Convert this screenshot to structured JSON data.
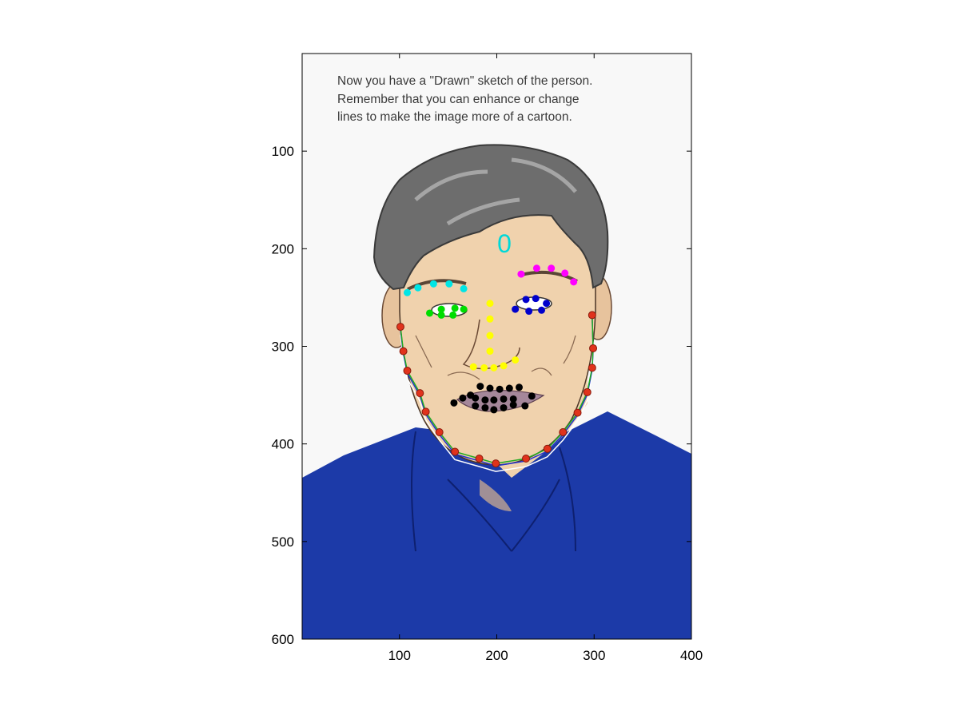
{
  "caption": {
    "lines": [
      "Now you have a \"Drawn\" sketch of the person.",
      "Remember that you can enhance or change",
      "lines to make the image more of a cartoon."
    ]
  },
  "index_marker": "0",
  "axes": {
    "xlim": [
      0,
      400
    ],
    "ylim": [
      0,
      600
    ],
    "y_reversed": true,
    "xticks": [
      100,
      200,
      300,
      400
    ],
    "yticks": [
      100,
      200,
      300,
      400,
      500,
      600
    ],
    "xtick_labels": [
      "100",
      "200",
      "300",
      "400"
    ],
    "ytick_labels": [
      "100",
      "200",
      "300",
      "400",
      "500",
      "600"
    ]
  },
  "colors": {
    "background": "#f8f8f8",
    "skin": "#f0d2ad",
    "hair": "#6d6d6d",
    "shirt": "#1c3aa8",
    "jaw": "#e0331c",
    "nose": "#ffff00",
    "left_brow": "#00e5e5",
    "right_brow": "#ff00ff",
    "left_eye": "#00dd00",
    "right_eye": "#0000cc",
    "mouth": "#000000",
    "marker_text": "#00d8d8",
    "fit_green": "#22aa22",
    "fit_blue": "#2233cc",
    "fit_white": "#ffffff"
  },
  "landmarks": {
    "jaw": [
      [
        101,
        280
      ],
      [
        104,
        305
      ],
      [
        108,
        325
      ],
      [
        121,
        348
      ],
      [
        127,
        367
      ],
      [
        141,
        388
      ],
      [
        157,
        408
      ],
      [
        182,
        415
      ],
      [
        199,
        420
      ],
      [
        230,
        415
      ],
      [
        252,
        405
      ],
      [
        268,
        388
      ],
      [
        283,
        368
      ],
      [
        293,
        347
      ],
      [
        298,
        322
      ],
      [
        299,
        302
      ],
      [
        298,
        268
      ]
    ],
    "left_brow": [
      [
        108,
        245
      ],
      [
        119,
        240
      ],
      [
        135,
        236
      ],
      [
        151,
        236
      ],
      [
        166,
        241
      ]
    ],
    "right_brow": [
      [
        225,
        226
      ],
      [
        241,
        220
      ],
      [
        256,
        220
      ],
      [
        270,
        225
      ],
      [
        279,
        234
      ]
    ],
    "left_eye": [
      [
        131,
        266
      ],
      [
        143,
        262
      ],
      [
        157,
        261
      ],
      [
        166,
        262
      ],
      [
        143,
        268
      ],
      [
        155,
        268
      ]
    ],
    "right_eye": [
      [
        219,
        262
      ],
      [
        230,
        252
      ],
      [
        240,
        251
      ],
      [
        251,
        256
      ],
      [
        233,
        264
      ],
      [
        246,
        263
      ]
    ],
    "nose": [
      [
        193,
        256
      ],
      [
        193,
        272
      ],
      [
        193,
        289
      ],
      [
        193,
        305
      ],
      [
        176,
        321
      ],
      [
        187,
        322
      ],
      [
        197,
        322
      ],
      [
        207,
        320
      ],
      [
        219,
        314
      ]
    ],
    "mouth": [
      [
        156,
        358
      ],
      [
        165,
        353
      ],
      [
        173,
        350
      ],
      [
        183,
        341
      ],
      [
        193,
        343
      ],
      [
        203,
        344
      ],
      [
        213,
        343
      ],
      [
        223,
        342
      ],
      [
        236,
        351
      ],
      [
        178,
        353
      ],
      [
        188,
        355
      ],
      [
        197,
        355
      ],
      [
        207,
        354
      ],
      [
        217,
        354
      ],
      [
        178,
        361
      ],
      [
        188,
        363
      ],
      [
        197,
        365
      ],
      [
        207,
        363
      ],
      [
        217,
        360
      ],
      [
        229,
        361
      ]
    ]
  }
}
